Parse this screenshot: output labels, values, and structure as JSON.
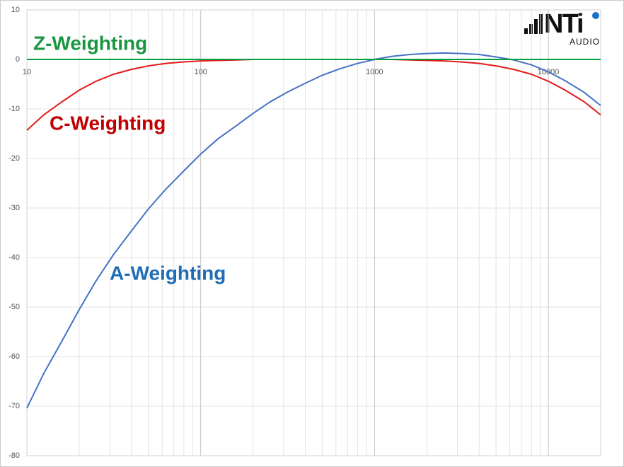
{
  "chart_data": {
    "type": "line",
    "x": [
      10,
      12.5,
      16,
      20,
      25,
      31.5,
      40,
      50,
      63,
      80,
      100,
      125,
      160,
      200,
      250,
      315,
      400,
      500,
      630,
      800,
      1000,
      1250,
      1600,
      2000,
      2500,
      3150,
      4000,
      5000,
      6300,
      8000,
      10000,
      12500,
      16000,
      20000
    ],
    "series": [
      {
        "name": "A-Weighting",
        "color": "#4472c4",
        "label_color": "#1f6db5",
        "values": [
          -70.4,
          -63.4,
          -56.7,
          -50.5,
          -44.7,
          -39.4,
          -34.6,
          -30.2,
          -26.2,
          -22.5,
          -19.1,
          -16.1,
          -13.4,
          -10.9,
          -8.6,
          -6.6,
          -4.8,
          -3.2,
          -1.9,
          -0.8,
          0,
          0.6,
          1.0,
          1.2,
          1.3,
          1.2,
          1.0,
          0.5,
          -0.1,
          -1.1,
          -2.5,
          -4.3,
          -6.6,
          -9.3
        ]
      },
      {
        "name": "C-Weighting",
        "color": "#e21b1b",
        "label_color": "#c00000",
        "values": [
          -14.3,
          -11.2,
          -8.5,
          -6.2,
          -4.4,
          -3.0,
          -2.0,
          -1.3,
          -0.8,
          -0.5,
          -0.3,
          -0.2,
          -0.1,
          0,
          0,
          0,
          0,
          0,
          0,
          0,
          0,
          0,
          -0.1,
          -0.2,
          -0.3,
          -0.5,
          -0.8,
          -1.3,
          -2.0,
          -3.0,
          -4.4,
          -6.2,
          -8.5,
          -11.2
        ]
      },
      {
        "name": "Z-Weighting",
        "color": "#00a040",
        "label_color": "#1a9641",
        "values": [
          0,
          0,
          0,
          0,
          0,
          0,
          0,
          0,
          0,
          0,
          0,
          0,
          0,
          0,
          0,
          0,
          0,
          0,
          0,
          0,
          0,
          0,
          0,
          0,
          0,
          0,
          0,
          0,
          0,
          0,
          0,
          0,
          0,
          0
        ]
      }
    ],
    "xlog": true,
    "xlim": [
      10,
      20000
    ],
    "xticks": [
      10,
      100,
      1000,
      10000
    ],
    "x_minor_ticks": [
      20,
      30,
      40,
      50,
      60,
      70,
      80,
      90,
      200,
      300,
      400,
      500,
      600,
      700,
      800,
      900,
      2000,
      3000,
      4000,
      5000,
      6000,
      7000,
      8000,
      9000
    ],
    "ylim": [
      -80,
      10
    ],
    "yticks": [
      10,
      0,
      -10,
      -20,
      -30,
      -40,
      -50,
      -60,
      -70,
      -80
    ],
    "grid": true
  },
  "logo": {
    "name": "NTi",
    "subtitle": "AUDIO"
  }
}
